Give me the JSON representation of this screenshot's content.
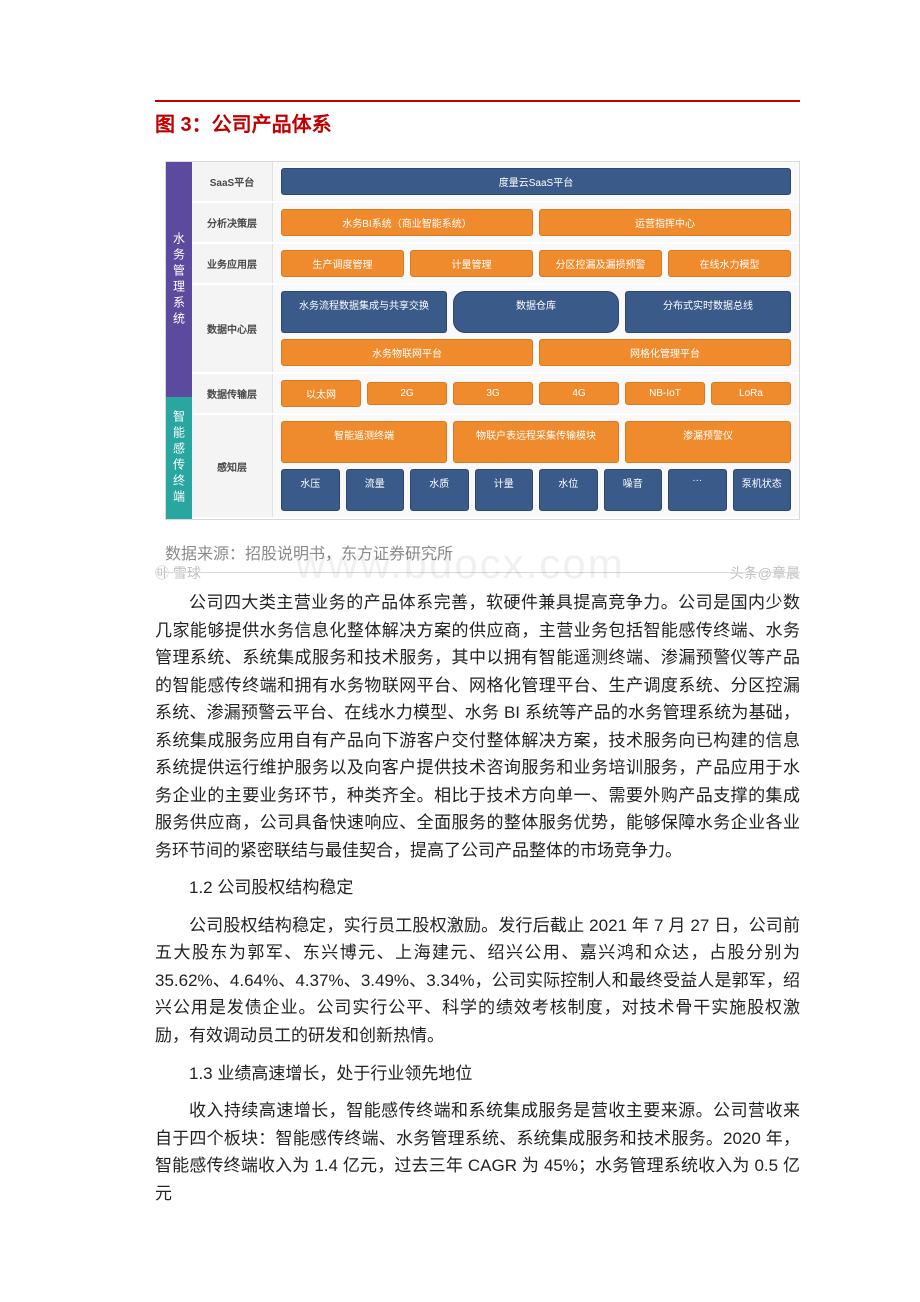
{
  "figure": {
    "title": "图 3：公司产品体系",
    "rule_color": "#c00000",
    "source": "数据来源：招股说明书，东方证券研究所",
    "watermark_center": "www.bdocx.com",
    "watermark_left": "㉲ 雪球",
    "watermark_right": "头条@章晨",
    "colors": {
      "purple": "#5b4a9e",
      "teal": "#2aa6a0",
      "orange": "#ef8b2c",
      "darkblue": "#3a5a8a",
      "row_bg": "#f9f9f9",
      "label_bg": "#f4f4f4"
    },
    "left_groups": [
      {
        "name": "水务管理系统",
        "color": "purple",
        "span_rows": 4
      },
      {
        "name": "智能感传终端",
        "color": "teal",
        "span_rows": 2
      }
    ],
    "rows": [
      {
        "label": "SaaS平台",
        "items": [
          {
            "text": "度量云SaaS平台",
            "style": "dark",
            "flex": "big"
          }
        ]
      },
      {
        "label": "分析决策层",
        "items": [
          {
            "text": "水务BI系统（商业智能系统）",
            "style": "orange",
            "flex": "wide"
          },
          {
            "text": "运营指挥中心",
            "style": "orange",
            "flex": "wide"
          }
        ]
      },
      {
        "label": "业务应用层",
        "items": [
          {
            "text": "生产调度管理",
            "style": "orange"
          },
          {
            "text": "计量管理",
            "style": "orange"
          },
          {
            "text": "分区控漏及漏损预警",
            "style": "orange"
          },
          {
            "text": "在线水力模型",
            "style": "orange"
          }
        ]
      },
      {
        "label": "数据中心层",
        "subrows": [
          [
            {
              "text": "水务流程数据集成与共享交换",
              "style": "dark",
              "flex": "wide"
            },
            {
              "text": "数据仓库",
              "style": "dark",
              "round": true
            },
            {
              "text": "分布式实时数据总线",
              "style": "dark"
            }
          ],
          [
            {
              "text": "水务物联网平台",
              "style": "orange",
              "flex": "wide"
            },
            {
              "text": "网格化管理平台",
              "style": "orange"
            }
          ]
        ]
      },
      {
        "label": "数据传输层",
        "items": [
          {
            "text": "以太网",
            "style": "orange"
          },
          {
            "text": "2G",
            "style": "orange"
          },
          {
            "text": "3G",
            "style": "orange"
          },
          {
            "text": "4G",
            "style": "orange"
          },
          {
            "text": "NB-IoT",
            "style": "orange"
          },
          {
            "text": "LoRa",
            "style": "orange"
          }
        ]
      },
      {
        "label": "感知层",
        "subrows": [
          [
            {
              "text": "智能遥测终端",
              "style": "orange"
            },
            {
              "text": "物联户表远程采集传输模块",
              "style": "orange",
              "flex": "wide"
            },
            {
              "text": "渗漏预警仪",
              "style": "orange"
            }
          ],
          [
            {
              "text": "水压",
              "style": "dark"
            },
            {
              "text": "流量",
              "style": "dark"
            },
            {
              "text": "水质",
              "style": "dark"
            },
            {
              "text": "计量",
              "style": "dark"
            },
            {
              "text": "水位",
              "style": "dark"
            },
            {
              "text": "噪音",
              "style": "dark"
            },
            {
              "text": "···",
              "style": "dark"
            },
            {
              "text": "泵机状态",
              "style": "dark"
            }
          ]
        ]
      }
    ]
  },
  "paragraphs": {
    "p1": "公司四大类主营业务的产品体系完善，软硬件兼具提高竞争力。公司是国内少数几家能够提供水务信息化整体解决方案的供应商，主营业务包括智能感传终端、水务管理系统、系统集成服务和技术服务，其中以拥有智能遥测终端、渗漏预警仪等产品的智能感传终端和拥有水务物联网平台、网格化管理平台、生产调度系统、分区控漏系统、渗漏预警云平台、在线水力模型、水务 BI 系统等产品的水务管理系统为基础，系统集成服务应用自有产品向下游客户交付整体解决方案，技术服务向已构建的信息系统提供运行维护服务以及向客户提供技术咨询服务和业务培训服务，产品应用于水务企业的主要业务环节，种类齐全。相比于技术方向单一、需要外购产品支撑的集成服务供应商，公司具备快速响应、全面服务的整体服务优势，能够保障水务企业各业务环节间的紧密联结与最佳契合，提高了公司产品整体的市场竞争力。",
    "h1": "1.2 公司股权结构稳定",
    "p2": "公司股权结构稳定，实行员工股权激励。发行后截止 2021 年 7 月 27 日，公司前五大股东为郭军、东兴博元、上海建元、绍兴公用、嘉兴鸿和众达，占股分别为35.62%、4.64%、4.37%、3.49%、3.34%，公司实际控制人和最终受益人是郭军，绍兴公用是发债企业。公司实行公平、科学的绩效考核制度，对技术骨干实施股权激励，有效调动员工的研发和创新热情。",
    "h2": "1.3 业绩高速增长，处于行业领先地位",
    "p3": "收入持续高速增长，智能感传终端和系统集成服务是营收主要来源。公司营收来自于四个板块：智能感传终端、水务管理系统、系统集成服务和技术服务。2020 年，智能感传终端收入为 1.4 亿元，过去三年 CAGR 为 45%；水务管理系统收入为 0.5 亿元"
  }
}
